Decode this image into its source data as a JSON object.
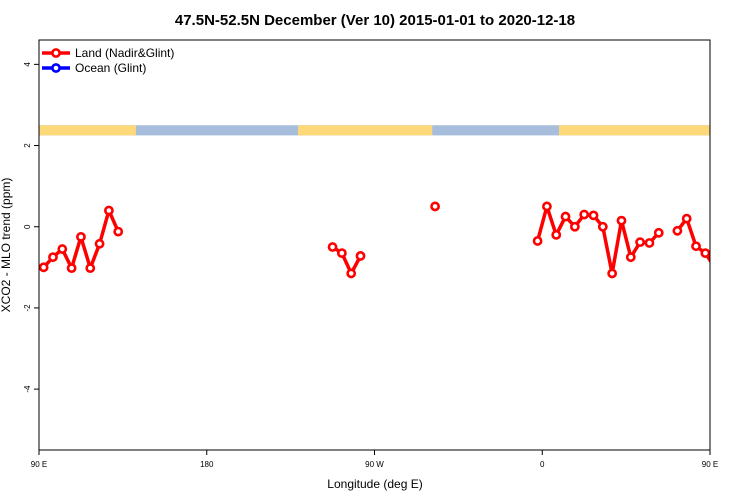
{
  "chart_data": {
    "type": "line",
    "title": "47.5N-52.5N December (Ver 10)   2015-01-01 to 2020-12-18",
    "xlabel": "Longitude (deg E)",
    "ylabel": "XCO2 - MLO trend (ppm)",
    "xlim": [
      90,
      450
    ],
    "ylim": [
      -5.5,
      4.6
    ],
    "x_ticks": [
      {
        "value": 90,
        "label": "90 E"
      },
      {
        "value": 180,
        "label": "180"
      },
      {
        "value": 270,
        "label": "90 W"
      },
      {
        "value": 360,
        "label": "0"
      },
      {
        "value": 450,
        "label": "90 E"
      },
      {
        "value": 540,
        "label": "180"
      }
    ],
    "y_ticks": [
      {
        "value": -4,
        "label": "-4"
      },
      {
        "value": -2,
        "label": "-2"
      },
      {
        "value": 0,
        "label": "0"
      },
      {
        "value": 2,
        "label": "2"
      },
      {
        "value": 4,
        "label": "4"
      }
    ],
    "legend": {
      "position": "top-left",
      "entries": [
        {
          "name": "Land (Nadir&Glint)",
          "color": "#ff0000"
        },
        {
          "name": "Ocean (Glint)",
          "color": "#0000ff"
        }
      ]
    },
    "land_mask_strip": {
      "y_range": [
        2.25,
        2.5
      ],
      "land_color": "#fdd97a",
      "ocean_color": "#a6bddb",
      "land_intervals": [
        [
          90,
          142
        ],
        [
          229,
          301
        ],
        [
          369,
          520
        ]
      ]
    },
    "series": [
      {
        "name": "Land (Nadir&Glint)",
        "color": "#ff0000",
        "segments": [
          [
            {
              "x": 92.5,
              "y": -1.0
            },
            {
              "x": 97.5,
              "y": -0.75
            },
            {
              "x": 102.5,
              "y": -0.55
            },
            {
              "x": 107.5,
              "y": -1.02
            },
            {
              "x": 112.5,
              "y": -0.25
            },
            {
              "x": 117.5,
              "y": -1.02
            },
            {
              "x": 122.5,
              "y": -0.42
            },
            {
              "x": 127.5,
              "y": 0.4
            },
            {
              "x": 132.5,
              "y": -0.12
            }
          ],
          [
            {
              "x": 247.5,
              "y": -0.5
            },
            {
              "x": 252.5,
              "y": -0.65
            },
            {
              "x": 257.5,
              "y": -1.15
            },
            {
              "x": 262.5,
              "y": -0.72
            }
          ],
          [
            {
              "x": 302.5,
              "y": 0.5
            }
          ],
          [
            {
              "x": 357.5,
              "y": -0.35
            },
            {
              "x": 362.5,
              "y": 0.5
            },
            {
              "x": 367.5,
              "y": -0.2
            },
            {
              "x": 372.5,
              "y": 0.25
            },
            {
              "x": 377.5,
              "y": 0.0
            },
            {
              "x": 382.5,
              "y": 0.3
            },
            {
              "x": 387.5,
              "y": 0.28
            },
            {
              "x": 392.5,
              "y": 0.0
            },
            {
              "x": 397.5,
              "y": -1.15
            },
            {
              "x": 402.5,
              "y": 0.15
            },
            {
              "x": 407.5,
              "y": -0.75
            },
            {
              "x": 412.5,
              "y": -0.38
            },
            {
              "x": 417.5,
              "y": -0.4
            },
            {
              "x": 422.5,
              "y": -0.15
            }
          ],
          [
            {
              "x": 432.5,
              "y": -0.1
            },
            {
              "x": 437.5,
              "y": 0.2
            },
            {
              "x": 442.5,
              "y": -0.48
            },
            {
              "x": 447.5,
              "y": -0.65
            },
            {
              "x": 452.5,
              "y": -1.0
            },
            {
              "x": 457.5,
              "y": -0.75
            },
            {
              "x": 462.5,
              "y": -0.55
            },
            {
              "x": 467.5,
              "y": -1.02
            },
            {
              "x": 472.5,
              "y": -0.25
            },
            {
              "x": 477.5,
              "y": -1.02
            },
            {
              "x": 482.5,
              "y": -0.42
            },
            {
              "x": 487.5,
              "y": 0.4
            },
            {
              "x": 492.5,
              "y": -0.12
            }
          ]
        ]
      },
      {
        "name": "Ocean (Glint)",
        "color": "#0000ff",
        "segments": []
      }
    ]
  }
}
